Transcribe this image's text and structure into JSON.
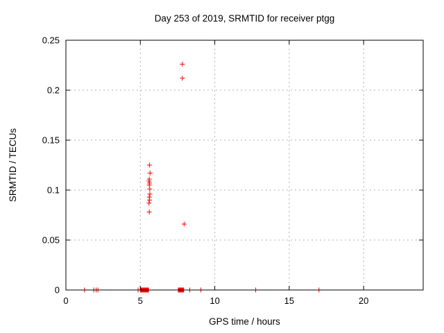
{
  "chart_data": {
    "type": "scatter",
    "title": "Day 253 of 2019, SRMTID for receiver ptgg",
    "xlabel": "GPS time / hours",
    "ylabel": "SRMTID / TECUs",
    "xlim": [
      0,
      24
    ],
    "ylim": [
      0,
      0.25
    ],
    "xticks": {
      "values": [
        0,
        5,
        10,
        15,
        20
      ],
      "labels": [
        "0",
        "5",
        "10",
        "15",
        "20"
      ]
    },
    "yticks": {
      "values": [
        0,
        0.05,
        0.1,
        0.15,
        0.2,
        0.25
      ],
      "labels": [
        "0",
        "0.05",
        "0.1",
        "0.15",
        "0.2",
        "0.25"
      ]
    },
    "grid": true,
    "legend": "none",
    "marker": "plus",
    "colors": {
      "marker": "#ff0000",
      "border": "#000000",
      "grid": "#b0b0b0",
      "background": "#ffffff",
      "text": "#000000"
    },
    "series": [
      {
        "name": "srmtid-points",
        "points": [
          [
            1.25,
            0
          ],
          [
            1.87,
            0
          ],
          [
            2.03,
            0
          ],
          [
            2.15,
            0
          ],
          [
            4.85,
            0
          ],
          [
            5.0,
            0
          ],
          [
            5.04,
            0
          ],
          [
            5.08,
            0
          ],
          [
            5.12,
            0
          ],
          [
            5.16,
            0
          ],
          [
            5.2,
            0
          ],
          [
            5.24,
            0
          ],
          [
            5.28,
            0
          ],
          [
            5.32,
            0
          ],
          [
            5.36,
            0
          ],
          [
            5.4,
            0
          ],
          [
            5.44,
            0
          ],
          [
            5.48,
            0
          ],
          [
            5.52,
            0
          ],
          [
            5.55,
            0
          ],
          [
            7.55,
            0
          ],
          [
            7.59,
            0
          ],
          [
            7.63,
            0
          ],
          [
            7.67,
            0
          ],
          [
            7.71,
            0
          ],
          [
            7.75,
            0
          ],
          [
            7.79,
            0
          ],
          [
            7.83,
            0
          ],
          [
            7.87,
            0
          ],
          [
            7.91,
            0
          ],
          [
            8.32,
            0
          ],
          [
            9.07,
            0
          ],
          [
            12.75,
            0
          ],
          [
            17.0,
            0
          ],
          [
            5.61,
            0.125
          ],
          [
            5.65,
            0.117
          ],
          [
            5.6,
            0.111
          ],
          [
            5.58,
            0.109
          ],
          [
            5.62,
            0.107
          ],
          [
            5.6,
            0.105
          ],
          [
            5.63,
            0.101
          ],
          [
            5.64,
            0.096
          ],
          [
            5.6,
            0.093
          ],
          [
            5.62,
            0.09
          ],
          [
            5.58,
            0.087
          ],
          [
            5.6,
            0.078
          ],
          [
            7.82,
            0.226
          ],
          [
            7.82,
            0.212
          ],
          [
            7.94,
            0.066
          ]
        ]
      }
    ]
  }
}
